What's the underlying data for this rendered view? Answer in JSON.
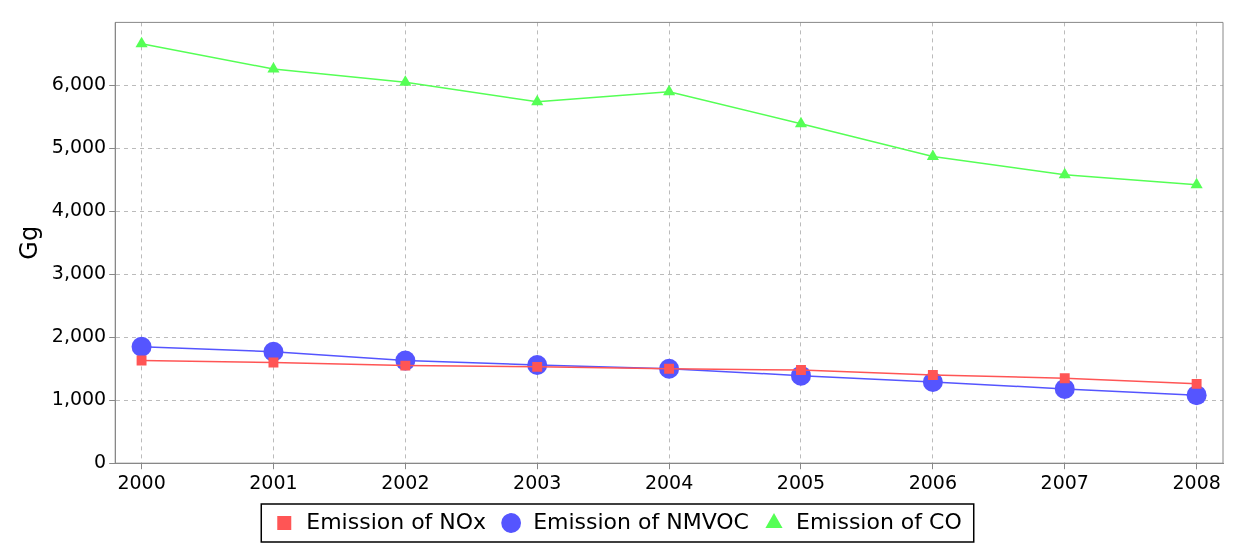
{
  "chart_data": {
    "type": "line",
    "ylabel": "Gg",
    "x": [
      2000,
      2001,
      2002,
      2003,
      2004,
      2005,
      2006,
      2007,
      2008
    ],
    "xlim": [
      1999.8,
      2008.2
    ],
    "xticks": [
      2000,
      2001,
      2002,
      2003,
      2004,
      2005,
      2006,
      2007,
      2008
    ],
    "ylim": [
      0,
      7000
    ],
    "yticks": [
      {
        "value": 0,
        "label": "0"
      },
      {
        "value": 1000,
        "label": "1,000"
      },
      {
        "value": 2000,
        "label": "2,000"
      },
      {
        "value": 3000,
        "label": "3,000"
      },
      {
        "value": 4000,
        "label": "4,000"
      },
      {
        "value": 5000,
        "label": "5,000"
      },
      {
        "value": 6000,
        "label": "6,000"
      }
    ],
    "grid": true,
    "legend": "bottom",
    "line_style": "solid",
    "series": [
      {
        "name": "Emission of NOx",
        "color": "#ff5555",
        "marker": "square",
        "values": [
          1630,
          1600,
          1550,
          1530,
          1500,
          1480,
          1400,
          1350,
          1260
        ]
      },
      {
        "name": "Emission of NMVOC",
        "color": "#5555ff",
        "marker": "circle",
        "values": [
          1850,
          1770,
          1630,
          1560,
          1500,
          1390,
          1290,
          1180,
          1080
        ]
      },
      {
        "name": "Emission of CO",
        "color": "#55ff55",
        "marker": "triangle",
        "values": [
          6660,
          6260,
          6050,
          5740,
          5900,
          5390,
          4870,
          4580,
          4420
        ]
      }
    ]
  }
}
